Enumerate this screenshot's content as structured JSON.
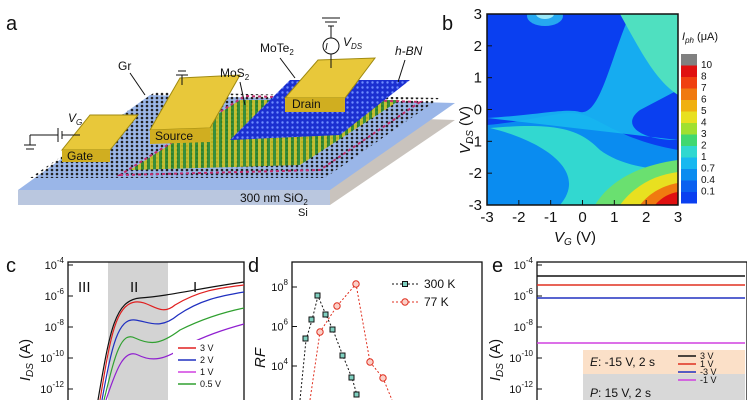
{
  "panels": {
    "a": {
      "label": "a",
      "gr": "Gr",
      "mos2": {
        "main": "MoS",
        "sub": "2"
      },
      "mote2": {
        "main": "MoTe",
        "sub": "2"
      },
      "hbn": "h-BN",
      "vds": {
        "main": "V",
        "sub": "DS"
      },
      "ids": "I",
      "drain": "Drain",
      "source": "Source",
      "gate": "Gate",
      "vg": {
        "main": "V",
        "sub": "G"
      },
      "sio2": {
        "main": "300 nm SiO",
        "sub": "2"
      },
      "si": "Si"
    },
    "b": {
      "label": "b",
      "xticks": [
        "-3",
        "-2",
        "-1",
        "0",
        "1",
        "2",
        "3"
      ],
      "yticks": [
        "3",
        "2",
        "1",
        "0",
        "-1",
        "-2",
        "-3"
      ],
      "xlabel": {
        "main": "V",
        "sub": "G",
        "unit": " (V)"
      },
      "ylabel": {
        "main": "V",
        "sub": "DS",
        "unit": " (V)"
      },
      "cbar_title": {
        "main": "I",
        "sub": "ph",
        "unit": " (μA)"
      },
      "cbar": [
        "10",
        "8",
        "7",
        "6",
        "5",
        "4",
        "3",
        "2",
        "1",
        "0.7",
        "0.4",
        "0.1"
      ]
    },
    "c": {
      "label": "c",
      "yticks": [
        {
          "base": "10",
          "exp": "-4"
        },
        {
          "base": "10",
          "exp": "-6"
        },
        {
          "base": "10",
          "exp": "-8"
        },
        {
          "base": "10",
          "exp": "-10"
        },
        {
          "base": "10",
          "exp": "-12"
        }
      ],
      "regions": [
        "III",
        "II",
        "I"
      ],
      "ylabel": {
        "main": "I",
        "sub": "DS",
        "unit": " (A)"
      },
      "legend": [
        "3 V",
        "2 V",
        "1 V",
        "0.5 V"
      ]
    },
    "d": {
      "label": "d",
      "yticks": [
        {
          "base": "10",
          "exp": "8"
        },
        {
          "base": "10",
          "exp": "6"
        },
        {
          "base": "10",
          "exp": "4"
        }
      ],
      "ylabel": "RF",
      "legend": [
        "300 K",
        "77 K"
      ]
    },
    "e": {
      "label": "e",
      "yticks": [
        {
          "base": "10",
          "exp": "-4"
        },
        {
          "base": "10",
          "exp": "-6"
        },
        {
          "base": "10",
          "exp": "-8"
        },
        {
          "base": "10",
          "exp": "-10"
        },
        {
          "base": "10",
          "exp": "-12"
        }
      ],
      "ylabel": {
        "main": "I",
        "sub": "DS",
        "unit": " (A)"
      },
      "erase": {
        "main": "E",
        "rest": ": -15 V, 2 s"
      },
      "program": {
        "main": "P",
        "rest": ": 15 V, 2 s"
      },
      "legend": [
        "3 V",
        "1 V",
        "-3 V",
        "-1 V"
      ]
    }
  }
}
